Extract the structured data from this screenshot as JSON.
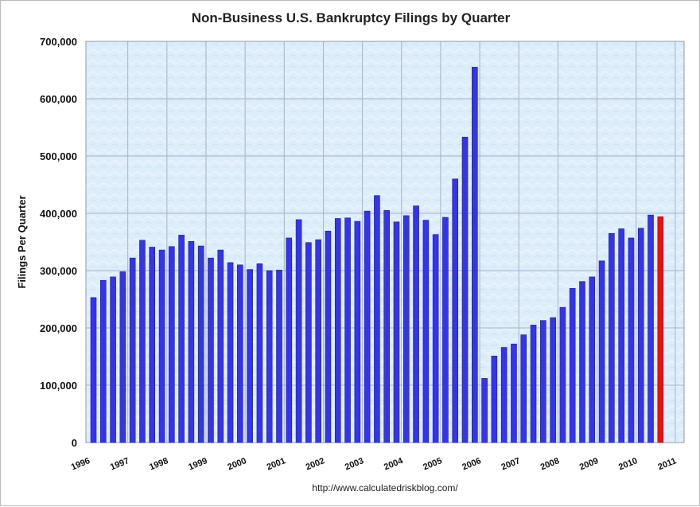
{
  "chart_data": {
    "type": "bar",
    "title": "Non-Business U.S. Bankruptcy Filings by Quarter",
    "ylabel": "Filings Per Quarter",
    "xlabel": "",
    "source": "http://www.calculatedriskblog.com/",
    "ylim": [
      0,
      700000
    ],
    "yticks": [
      0,
      100000,
      200000,
      300000,
      400000,
      500000,
      600000,
      700000
    ],
    "ytick_labels": [
      "0",
      "100,000",
      "200,000",
      "300,000",
      "400,000",
      "500,000",
      "600,000",
      "700,000"
    ],
    "xtick_labels": [
      "1996",
      "1997",
      "1998",
      "1999",
      "2000",
      "2001",
      "2002",
      "2003",
      "2004",
      "2005",
      "2006",
      "2007",
      "2008",
      "2009",
      "2010",
      "2011"
    ],
    "grid": true,
    "legend": "none",
    "categories": [
      "1996 Q1",
      "1996 Q2",
      "1996 Q3",
      "1996 Q4",
      "1997 Q1",
      "1997 Q2",
      "1997 Q3",
      "1997 Q4",
      "1998 Q1",
      "1998 Q2",
      "1998 Q3",
      "1998 Q4",
      "1999 Q1",
      "1999 Q2",
      "1999 Q3",
      "1999 Q4",
      "2000 Q1",
      "2000 Q2",
      "2000 Q3",
      "2000 Q4",
      "2001 Q1",
      "2001 Q2",
      "2001 Q3",
      "2001 Q4",
      "2002 Q1",
      "2002 Q2",
      "2002 Q3",
      "2002 Q4",
      "2003 Q1",
      "2003 Q2",
      "2003 Q3",
      "2003 Q4",
      "2004 Q1",
      "2004 Q2",
      "2004 Q3",
      "2004 Q4",
      "2005 Q1",
      "2005 Q2",
      "2005 Q3",
      "2005 Q4",
      "2006 Q1",
      "2006 Q2",
      "2006 Q3",
      "2006 Q4",
      "2007 Q1",
      "2007 Q2",
      "2007 Q3",
      "2007 Q4",
      "2008 Q1",
      "2008 Q2",
      "2008 Q3",
      "2008 Q4",
      "2009 Q1",
      "2009 Q2",
      "2009 Q3",
      "2009 Q4",
      "2010 Q1",
      "2010 Q2",
      "2010 Q3"
    ],
    "values": [
      253000,
      283000,
      289000,
      298000,
      322000,
      353000,
      341000,
      336000,
      342000,
      362000,
      351000,
      343000,
      322000,
      336000,
      314000,
      310000,
      302000,
      312000,
      300000,
      301000,
      357000,
      389000,
      349000,
      354000,
      369000,
      391000,
      392000,
      386000,
      404000,
      431000,
      405000,
      385000,
      396000,
      413000,
      388000,
      363000,
      393000,
      460000,
      533000,
      655000,
      112000,
      151000,
      166000,
      172000,
      188000,
      205000,
      213000,
      218000,
      236000,
      269000,
      281000,
      289000,
      317000,
      365000,
      373000,
      357000,
      374000,
      397000,
      394000
    ],
    "colors": {
      "bar": "#3535e6",
      "highlight_bar": "#ee1010",
      "plot_bg": "#ddeefa",
      "grid": "#a7b3c8"
    },
    "highlight_index": 58
  }
}
